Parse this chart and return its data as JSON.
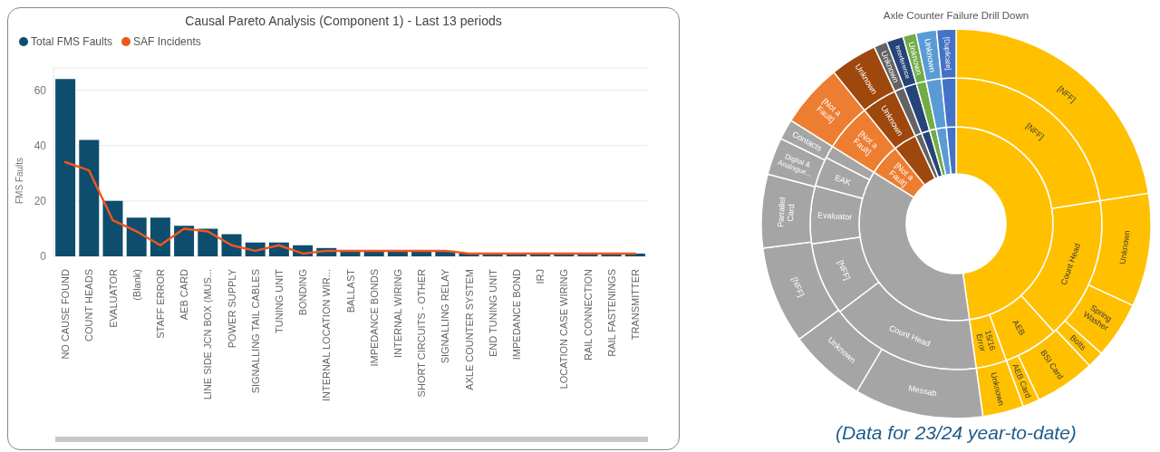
{
  "chart_data": [
    {
      "type": "bar",
      "title": "Causal Pareto Analysis (Component 1) - Last 13 periods",
      "ylabel": "FMS Faults",
      "categories": [
        "NO CAUSE FOUND",
        "COUNT HEADS",
        "EVALUATOR",
        "(Blank)",
        "STAFF ERROR",
        "AEB CARD",
        "LINE SIDE JCN BOX (MUS...",
        "POWER SUPPLY",
        "SIGNALLING TAIL CABLES",
        "TUNING UNIT",
        "BONDING",
        "INTERNAL LOCATION WIR...",
        "BALLAST",
        "IMPEDANCE BONDS",
        "INTERNAL WIRING",
        "SHORT CIRCUITS - OTHER",
        "SIGNALLING RELAY",
        "AXLE COUNTER SYSTEM",
        "END TUNING UNIT",
        "IMPEDANCE BOND",
        "IRJ",
        "LOCATION CASE WIRING",
        "RAIL CONNECTION",
        "RAIL FASTENINGS",
        "TRANSMITTER"
      ],
      "series": [
        {
          "name": "Total FMS Faults",
          "type": "bar",
          "color": "#0e4d6e",
          "values": [
            64,
            42,
            20,
            14,
            14,
            11,
            10,
            8,
            5,
            5,
            4,
            3,
            2,
            2,
            2,
            2,
            2,
            1,
            1,
            1,
            1,
            1,
            1,
            1,
            1
          ]
        },
        {
          "name": "SAF Incidents",
          "type": "line",
          "color": "#f0561d",
          "values": [
            34,
            31,
            13,
            9,
            4,
            10,
            9,
            4,
            2,
            4,
            1,
            2,
            2,
            2,
            2,
            2,
            2,
            1,
            1,
            1,
            1,
            1,
            1,
            1,
            1
          ]
        }
      ],
      "ylim": [
        0,
        68
      ],
      "yticks": [
        0,
        20,
        40,
        60
      ],
      "grid": "y",
      "legend": "top left",
      "marker": "none"
    },
    {
      "type": "donut",
      "categories": [
        null,
        null,
        "[Not a Fault]",
        null,
        null,
        null,
        null,
        null,
        null
      ],
      "values": [
        47.8,
        36.1,
        5.3,
        3.9,
        1.1,
        1.4,
        1.1,
        1.7,
        1.6
      ],
      "colors": [
        "#ffc000",
        "#a5a5a5",
        "#ed7d31",
        "#9e480e",
        "#636363",
        "#264478",
        "#70ad47",
        "#5b9bd5",
        "#4472c4"
      ]
    },
    {
      "type": "donut",
      "categories": [
        "[NFF]",
        "Count Head",
        "AEB",
        "15/16 Error",
        "Count Head",
        "[NFF]",
        "Evaluator",
        "EAK",
        null,
        "[Not a Fault]",
        "Unknown",
        null,
        null,
        null,
        null,
        null
      ],
      "values": [
        22.5,
        15.8,
        6.1,
        3.4,
        16.9,
        8.1,
        6.4,
        3.3,
        1.4,
        5.3,
        3.9,
        1.1,
        1.4,
        1.1,
        1.7,
        1.6
      ],
      "colors": [
        "#ffc000",
        "#ffc000",
        "#ffc000",
        "#ffc000",
        "#a5a5a5",
        "#a5a5a5",
        "#a5a5a5",
        "#a5a5a5",
        "#a5a5a5",
        "#ed7d31",
        "#9e480e",
        "#636363",
        "#264478",
        "#70ad47",
        "#5b9bd5",
        "#4472c4"
      ]
    },
    {
      "type": "donut",
      "title": "Axle Counter Failure Drill Down",
      "annotations": [
        "(Data for 23/24 year-to-date)"
      ],
      "categories": [
        "[NFF]",
        "Unknown",
        "Spring Washer",
        "Bolts",
        "BSI Card",
        "AEB Card",
        "Unknown",
        "Messab",
        "Unknown",
        "[NFF]",
        "Parrallel Card",
        "Digital & Analogue...",
        "Contacts",
        "[Not a Fault]",
        "Unknown",
        "Unknown",
        "Interference",
        "Unknown",
        "Unknown",
        "[Duplicate]"
      ],
      "values": [
        22.5,
        9.4,
        4.7,
        1.4,
        5.0,
        1.4,
        3.4,
        10.7,
        6.4,
        8.1,
        6.1,
        3.1,
        1.7,
        5.3,
        3.9,
        1.1,
        1.4,
        1.1,
        1.7,
        1.6
      ],
      "colors": [
        "#ffc000",
        "#ffc000",
        "#ffc000",
        "#ffc000",
        "#ffc000",
        "#ffc000",
        "#ffc000",
        "#a5a5a5",
        "#a5a5a5",
        "#a5a5a5",
        "#a5a5a5",
        "#a5a5a5",
        "#a5a5a5",
        "#ed7d31",
        "#9e480e",
        "#636363",
        "#264478",
        "#70ad47",
        "#5b9bd5",
        "#4472c4"
      ]
    }
  ]
}
